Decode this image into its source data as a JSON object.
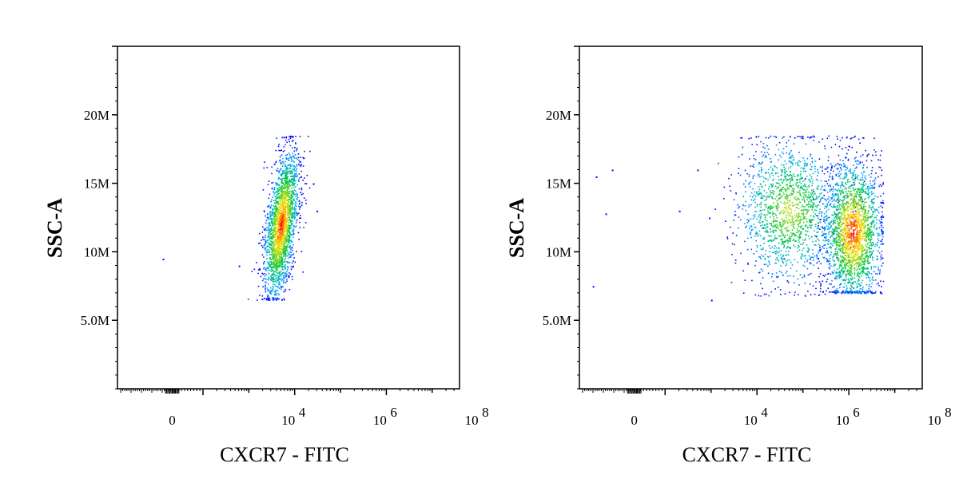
{
  "chart_data": [
    {
      "type": "scatter",
      "xlabel": "CXCR7 - FITC",
      "ylabel": "SSC-A",
      "x_scale": "biexponential",
      "y_scale": "linear",
      "x_ticks": [
        {
          "value": 0,
          "label": "0",
          "exp": ""
        },
        {
          "value": 10000,
          "label": "10",
          "exp": "4"
        },
        {
          "value": 1000000,
          "label": "10",
          "exp": "6"
        },
        {
          "value": 100000000,
          "label": "10",
          "exp": "8"
        }
      ],
      "y_ticks": [
        {
          "value": 5000000,
          "label": "5.0M"
        },
        {
          "value": 10000000,
          "label": "10M"
        },
        {
          "value": 15000000,
          "label": "15M"
        },
        {
          "value": 20000000,
          "label": "20M"
        }
      ],
      "ylim": [
        0,
        25000000
      ],
      "density_coloring": "blue-green-yellow-red",
      "populations": [
        {
          "x_center": 5000,
          "y_center": 12000000,
          "y_range": [
            6500000,
            18500000
          ],
          "density": "high",
          "shape": "elongated-tilted"
        }
      ],
      "outliers": [
        {
          "x": -300,
          "y": 9500000
        },
        {
          "x": 600,
          "y": 9000000
        },
        {
          "x": 25000,
          "y": 15000000
        },
        {
          "x": 30000,
          "y": 13000000
        }
      ]
    },
    {
      "type": "scatter",
      "xlabel": "CXCR7 - FITC",
      "ylabel": "SSC-A",
      "x_scale": "biexponential",
      "y_scale": "linear",
      "x_ticks": [
        {
          "value": 0,
          "label": "0",
          "exp": ""
        },
        {
          "value": 10000,
          "label": "10",
          "exp": "4"
        },
        {
          "value": 1000000,
          "label": "10",
          "exp": "6"
        },
        {
          "value": 100000000,
          "label": "10",
          "exp": "8"
        }
      ],
      "y_ticks": [
        {
          "value": 5000000,
          "label": "5.0M"
        },
        {
          "value": 10000000,
          "label": "10M"
        },
        {
          "value": 15000000,
          "label": "15M"
        },
        {
          "value": 20000000,
          "label": "20M"
        }
      ],
      "ylim": [
        0,
        25000000
      ],
      "density_coloring": "blue-green-yellow-red",
      "populations": [
        {
          "x_center": 50000,
          "y_center": 13000000,
          "y_range": [
            6800000,
            18500000
          ],
          "density": "medium"
        },
        {
          "x_center": 1200000,
          "y_center": 11500000,
          "y_range": [
            7000000,
            18500000
          ],
          "density": "high"
        }
      ],
      "outliers": [
        {
          "x": -1200,
          "y": 15500000
        },
        {
          "x": -900,
          "y": 12800000
        },
        {
          "x": -700,
          "y": 16000000
        },
        {
          "x": -1300,
          "y": 7500000
        },
        {
          "x": 200,
          "y": 13000000
        },
        {
          "x": 500,
          "y": 16000000
        },
        {
          "x": 900,
          "y": 12500000
        },
        {
          "x": 1000,
          "y": 6500000
        }
      ]
    }
  ]
}
